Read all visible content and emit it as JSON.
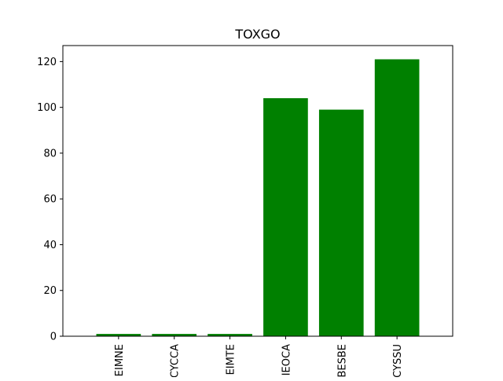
{
  "chart_data": {
    "type": "bar",
    "title": "TOXGO",
    "xlabel": "",
    "ylabel": "",
    "categories": [
      "EIMNE",
      "CYCCA",
      "EIMTE",
      "IEOCA",
      "BESBE",
      "CYSSU"
    ],
    "values": [
      1,
      1,
      1,
      104,
      99,
      121
    ],
    "ylim": [
      0,
      127
    ],
    "yticks": [
      0,
      20,
      40,
      60,
      80,
      100,
      120
    ],
    "bar_color": "#008000",
    "grid": false,
    "legend": "none",
    "xtick_rotation": "vertical"
  }
}
